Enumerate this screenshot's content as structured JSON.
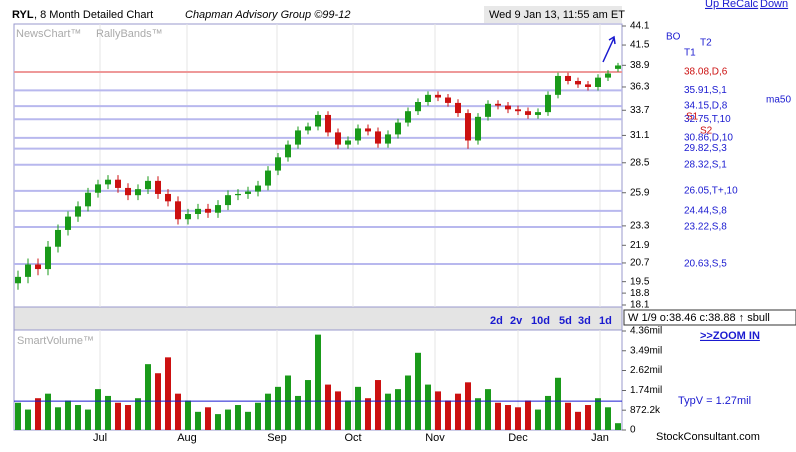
{
  "header": {
    "ticker": "RYL",
    "subtitle": ", 8 Month Detailed Chart",
    "owner": "Chapman Advisory Group ©99-12",
    "timestamp": "Wed 9 Jan 13, 11:55 am ET",
    "links": [
      "Up ReCalc",
      "Down"
    ]
  },
  "panel_labels": {
    "news": "NewsChart™",
    "bands": "RallyBands™",
    "volume": "SmartVolume™"
  },
  "buttons": [
    "2d",
    "2v",
    "10d",
    "5d",
    "3d",
    "1d"
  ],
  "quote": "W 1/9 o:38.46 c:38.88 ↑ sbull",
  "zoom": ">>ZOOM IN",
  "markers": {
    "bo": "BO",
    "t1": "T1",
    "t2": "T2",
    "s1": "S1",
    "s2": "S2",
    "ma": "ma50"
  },
  "footer": "StockConsultant.com",
  "chart_data": {
    "type": "candlestick",
    "log_scale": true,
    "up_color": "#1a9a1a",
    "down_color": "#cc1111",
    "categories": [
      null,
      null,
      null,
      null,
      null,
      null,
      null,
      null,
      null,
      null,
      null,
      null,
      null,
      null,
      null,
      null,
      null,
      null,
      null,
      null,
      null,
      null,
      null,
      null,
      null,
      null,
      null,
      null,
      null,
      null,
      null,
      null,
      null,
      null,
      null,
      null,
      null,
      null,
      null,
      null,
      null,
      null,
      null,
      null,
      null,
      null,
      null,
      null,
      null,
      null,
      null,
      null,
      null,
      null,
      null,
      null,
      null,
      null,
      null,
      null,
      null
    ],
    "open": [
      19.4,
      19.8,
      20.6,
      20.3,
      21.8,
      23.0,
      24.0,
      24.8,
      25.9,
      26.6,
      27.0,
      26.3,
      25.7,
      26.2,
      26.9,
      25.8,
      25.2,
      23.8,
      24.2,
      24.6,
      24.3,
      24.9,
      25.7,
      25.8,
      26.0,
      26.5,
      27.8,
      29.0,
      30.2,
      31.6,
      32.0,
      33.2,
      31.4,
      30.2,
      30.6,
      31.8,
      31.5,
      30.3,
      31.2,
      32.4,
      33.6,
      34.6,
      35.4,
      35.1,
      34.5,
      33.4,
      30.6,
      33.0,
      34.4,
      34.2,
      33.8,
      33.6,
      33.2,
      33.5,
      35.4,
      37.6,
      37.0,
      36.6,
      36.3,
      37.4,
      38.46
    ],
    "high": [
      20.2,
      21.0,
      21.0,
      22.2,
      23.4,
      24.4,
      25.2,
      26.3,
      27.0,
      27.4,
      27.4,
      26.7,
      26.6,
      27.3,
      27.3,
      26.2,
      25.6,
      24.6,
      25.0,
      25.0,
      25.3,
      26.1,
      26.2,
      26.4,
      26.9,
      28.2,
      29.4,
      30.6,
      32.0,
      32.4,
      33.6,
      33.6,
      31.8,
      31.0,
      32.2,
      32.2,
      31.9,
      31.6,
      32.8,
      34.0,
      35.0,
      35.8,
      35.8,
      35.5,
      34.9,
      33.8,
      33.4,
      34.8,
      34.8,
      34.6,
      34.2,
      34.0,
      33.9,
      35.8,
      38.0,
      38.0,
      37.4,
      37.0,
      37.8,
      38.3,
      39.2
    ],
    "low": [
      19.0,
      19.4,
      19.9,
      19.9,
      21.4,
      22.6,
      23.6,
      24.4,
      25.5,
      26.2,
      25.9,
      25.3,
      25.3,
      25.8,
      25.4,
      24.8,
      23.4,
      23.4,
      23.8,
      23.9,
      23.9,
      24.5,
      25.3,
      25.4,
      25.6,
      26.1,
      27.4,
      28.6,
      29.8,
      31.2,
      31.6,
      31.0,
      29.8,
      29.8,
      30.2,
      31.1,
      29.9,
      29.9,
      30.8,
      32.0,
      33.2,
      34.2,
      34.7,
      34.1,
      33.0,
      29.8,
      30.2,
      32.6,
      33.8,
      33.4,
      33.2,
      32.8,
      32.8,
      33.1,
      35.0,
      36.6,
      36.2,
      35.9,
      35.9,
      37.0,
      38.1
    ],
    "close": [
      19.8,
      20.6,
      20.3,
      21.8,
      23.0,
      24.0,
      24.8,
      25.9,
      26.6,
      27.0,
      26.3,
      25.7,
      26.2,
      26.9,
      25.8,
      25.2,
      23.8,
      24.2,
      24.6,
      24.3,
      24.9,
      25.7,
      25.8,
      26.0,
      26.5,
      27.8,
      29.0,
      30.2,
      31.6,
      32.0,
      33.2,
      31.4,
      30.2,
      30.6,
      31.8,
      31.5,
      30.3,
      31.2,
      32.4,
      33.6,
      34.6,
      35.4,
      35.1,
      34.5,
      33.4,
      30.6,
      33.0,
      34.4,
      34.2,
      33.8,
      33.6,
      33.2,
      33.5,
      35.4,
      37.6,
      37.0,
      36.6,
      36.3,
      37.4,
      37.9,
      38.88
    ],
    "xlim": [
      -0.4,
      60.4
    ],
    "xticks": [
      {
        "value": 8.2,
        "label": "Jul"
      },
      {
        "value": 16.9,
        "label": "Aug"
      },
      {
        "value": 25.9,
        "label": "Sep"
      },
      {
        "value": 33.5,
        "label": "Oct"
      },
      {
        "value": 41.7,
        "label": "Nov"
      },
      {
        "value": 50,
        "label": "Dec"
      },
      {
        "value": 58.2,
        "label": "Jan"
      }
    ],
    "ylim": [
      18.1,
      44.1
    ],
    "yticks": [
      44.1,
      41.5,
      38.9,
      36.3,
      33.7,
      31.1,
      28.5,
      25.9,
      23.3,
      21.9,
      20.7,
      19.5,
      18.8,
      18.1
    ],
    "levels": [
      {
        "value": 38.08,
        "label": "38.08,D,6",
        "color": "#ee9999"
      },
      {
        "value": 35.91,
        "label": "35.91,S,1",
        "color": "#b8b8ee"
      },
      {
        "value": 34.15,
        "label": "34.15,D,8",
        "color": "#b8b8ee"
      },
      {
        "value": 32.75,
        "label": "32.75,T,10",
        "color": "#b8b8ee"
      },
      {
        "value": 30.86,
        "label": "30.86,D,10",
        "color": "#b8b8ee"
      },
      {
        "value": 29.82,
        "label": "29.82,S,3",
        "color": "#b8b8ee"
      },
      {
        "value": 28.32,
        "label": "28.32,S,1",
        "color": "#b8b8ee"
      },
      {
        "value": 26.05,
        "label": "26.05,T+,10",
        "color": "#b8b8ee"
      },
      {
        "value": 24.44,
        "label": "24.44,S,8",
        "color": "#b8b8ee"
      },
      {
        "value": 23.22,
        "label": "23.22,S,8",
        "color": "#b8b8ee"
      },
      {
        "value": 20.63,
        "label": "20.63,S,5",
        "color": "#b8b8ee"
      }
    ],
    "volume": {
      "values": [
        1.2,
        0.9,
        1.4,
        1.6,
        1.0,
        1.3,
        1.1,
        0.9,
        1.8,
        1.5,
        1.2,
        1.1,
        1.4,
        2.9,
        2.5,
        3.2,
        1.6,
        1.3,
        0.8,
        1.0,
        0.7,
        0.9,
        1.1,
        0.8,
        1.2,
        1.6,
        1.9,
        2.4,
        1.5,
        2.2,
        4.2,
        2.0,
        1.7,
        1.3,
        1.9,
        1.4,
        2.2,
        1.6,
        1.8,
        2.4,
        3.4,
        2.0,
        1.7,
        1.3,
        1.6,
        2.1,
        1.4,
        1.8,
        1.2,
        1.1,
        1.0,
        1.3,
        0.9,
        1.5,
        2.3,
        1.2,
        0.8,
        1.1,
        1.4,
        1.0,
        0.3
      ],
      "ylim": [
        0,
        4.36
      ],
      "yticks": [
        {
          "value": 4.36,
          "label": "4.36mil"
        },
        {
          "value": 3.49,
          "label": "3.49mil"
        },
        {
          "value": 2.62,
          "label": "2.62mil"
        },
        {
          "value": 1.74,
          "label": "1.74mil"
        },
        {
          "value": 0.8722,
          "label": "872.2k"
        },
        0
      ],
      "typical": {
        "value": 1.27,
        "label": "TypV = 1.27mil"
      }
    }
  }
}
